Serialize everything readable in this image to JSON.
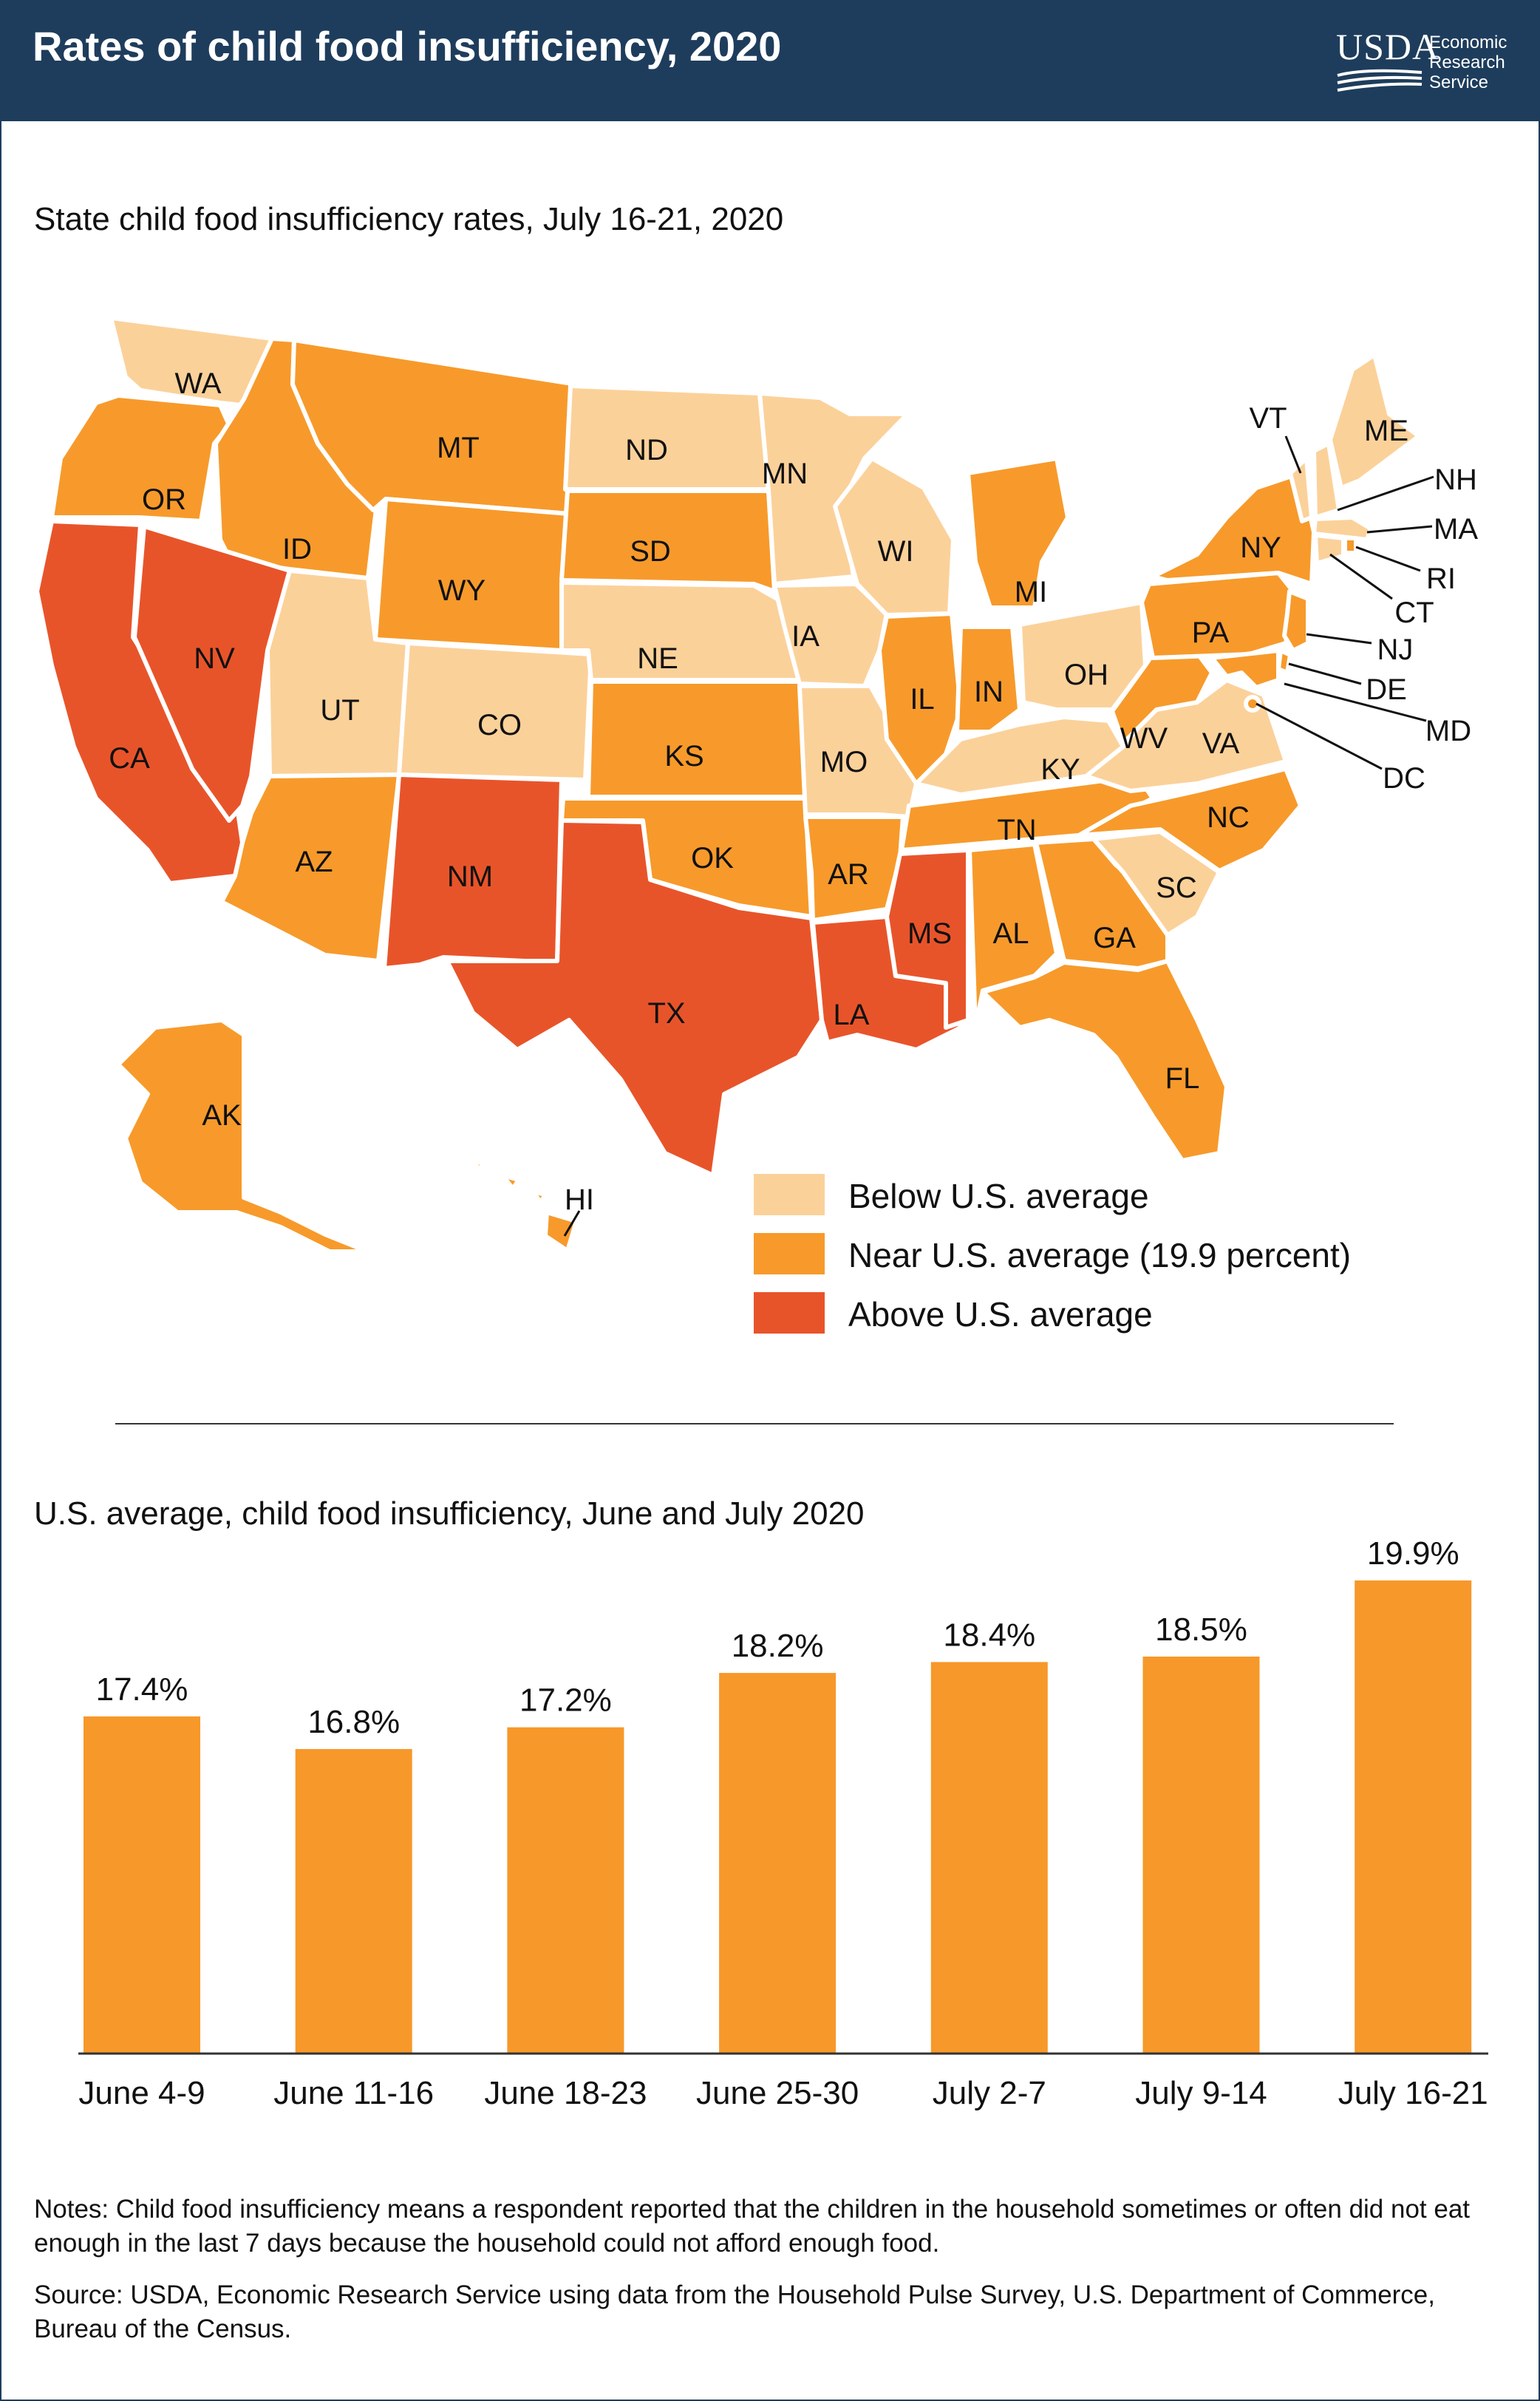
{
  "header": {
    "title": "Rates of child food insufficiency, 2020",
    "logo_word": "USDA",
    "logo_subtitle_1": "Economic",
    "logo_subtitle_2": "Research",
    "logo_subtitle_3": "Service"
  },
  "colors": {
    "header_bg": "#1e3d5c",
    "below": "#fbd19a",
    "near": "#f79a2b",
    "above": "#e8542a",
    "bar": "#f7982a"
  },
  "map": {
    "title": "State child food insufficiency rates, July 16-21, 2020",
    "legend": [
      {
        "label": "Below U.S. average",
        "category": "below"
      },
      {
        "label": "Near U.S. average (19.9 percent)",
        "category": "near"
      },
      {
        "label": "Above U.S. average",
        "category": "above"
      }
    ],
    "states": [
      {
        "abbr": "WA",
        "category": "below"
      },
      {
        "abbr": "OR",
        "category": "near"
      },
      {
        "abbr": "CA",
        "category": "above"
      },
      {
        "abbr": "ID",
        "category": "near"
      },
      {
        "abbr": "NV",
        "category": "above"
      },
      {
        "abbr": "MT",
        "category": "near"
      },
      {
        "abbr": "WY",
        "category": "near"
      },
      {
        "abbr": "UT",
        "category": "below"
      },
      {
        "abbr": "CO",
        "category": "below"
      },
      {
        "abbr": "AZ",
        "category": "near"
      },
      {
        "abbr": "NM",
        "category": "above"
      },
      {
        "abbr": "ND",
        "category": "below"
      },
      {
        "abbr": "SD",
        "category": "near"
      },
      {
        "abbr": "NE",
        "category": "below"
      },
      {
        "abbr": "KS",
        "category": "near"
      },
      {
        "abbr": "OK",
        "category": "near"
      },
      {
        "abbr": "TX",
        "category": "above"
      },
      {
        "abbr": "MN",
        "category": "below"
      },
      {
        "abbr": "IA",
        "category": "below"
      },
      {
        "abbr": "MO",
        "category": "below"
      },
      {
        "abbr": "AR",
        "category": "near"
      },
      {
        "abbr": "LA",
        "category": "above"
      },
      {
        "abbr": "WI",
        "category": "below"
      },
      {
        "abbr": "IL",
        "category": "near"
      },
      {
        "abbr": "MI",
        "category": "near"
      },
      {
        "abbr": "IN",
        "category": "near"
      },
      {
        "abbr": "OH",
        "category": "below"
      },
      {
        "abbr": "KY",
        "category": "below"
      },
      {
        "abbr": "TN",
        "category": "near"
      },
      {
        "abbr": "MS",
        "category": "above"
      },
      {
        "abbr": "AL",
        "category": "near"
      },
      {
        "abbr": "GA",
        "category": "near"
      },
      {
        "abbr": "FL",
        "category": "near"
      },
      {
        "abbr": "SC",
        "category": "below"
      },
      {
        "abbr": "NC",
        "category": "near"
      },
      {
        "abbr": "VA",
        "category": "below"
      },
      {
        "abbr": "WV",
        "category": "near"
      },
      {
        "abbr": "PA",
        "category": "near"
      },
      {
        "abbr": "NY",
        "category": "near"
      },
      {
        "abbr": "VT",
        "category": "below"
      },
      {
        "abbr": "ME",
        "category": "below"
      },
      {
        "abbr": "NH",
        "category": "below"
      },
      {
        "abbr": "MA",
        "category": "below"
      },
      {
        "abbr": "RI",
        "category": "near"
      },
      {
        "abbr": "CT",
        "category": "below"
      },
      {
        "abbr": "NJ",
        "category": "near"
      },
      {
        "abbr": "DE",
        "category": "near"
      },
      {
        "abbr": "MD",
        "category": "near"
      },
      {
        "abbr": "DC",
        "category": "near"
      },
      {
        "abbr": "AK",
        "category": "near"
      },
      {
        "abbr": "HI",
        "category": "near"
      }
    ]
  },
  "chart_data": {
    "type": "bar",
    "title": "U.S. average, child food insufficiency, June and July 2020",
    "categories": [
      "June 4-9",
      "June 11-16",
      "June 18-23",
      "June 25-30",
      "July 2-7",
      "July 9-14",
      "July 16-21"
    ],
    "values": [
      17.4,
      16.8,
      17.2,
      18.2,
      18.4,
      18.5,
      19.9
    ],
    "data_labels": [
      "17.4%",
      "16.8%",
      "17.2%",
      "18.2%",
      "18.4%",
      "18.5%",
      "19.9%"
    ],
    "ylim": [
      11.2,
      19.9
    ],
    "xlabel": "",
    "ylabel": ""
  },
  "footer": {
    "notes": "Notes: Child food insufficiency means a respondent reported that the children in the household sometimes or often did not eat enough in the last 7 days because the household could not afford enough food.",
    "source": "Source: USDA, Economic Research Service using data from the Household Pulse Survey, U.S. Department of Commerce, Bureau of the Census."
  }
}
